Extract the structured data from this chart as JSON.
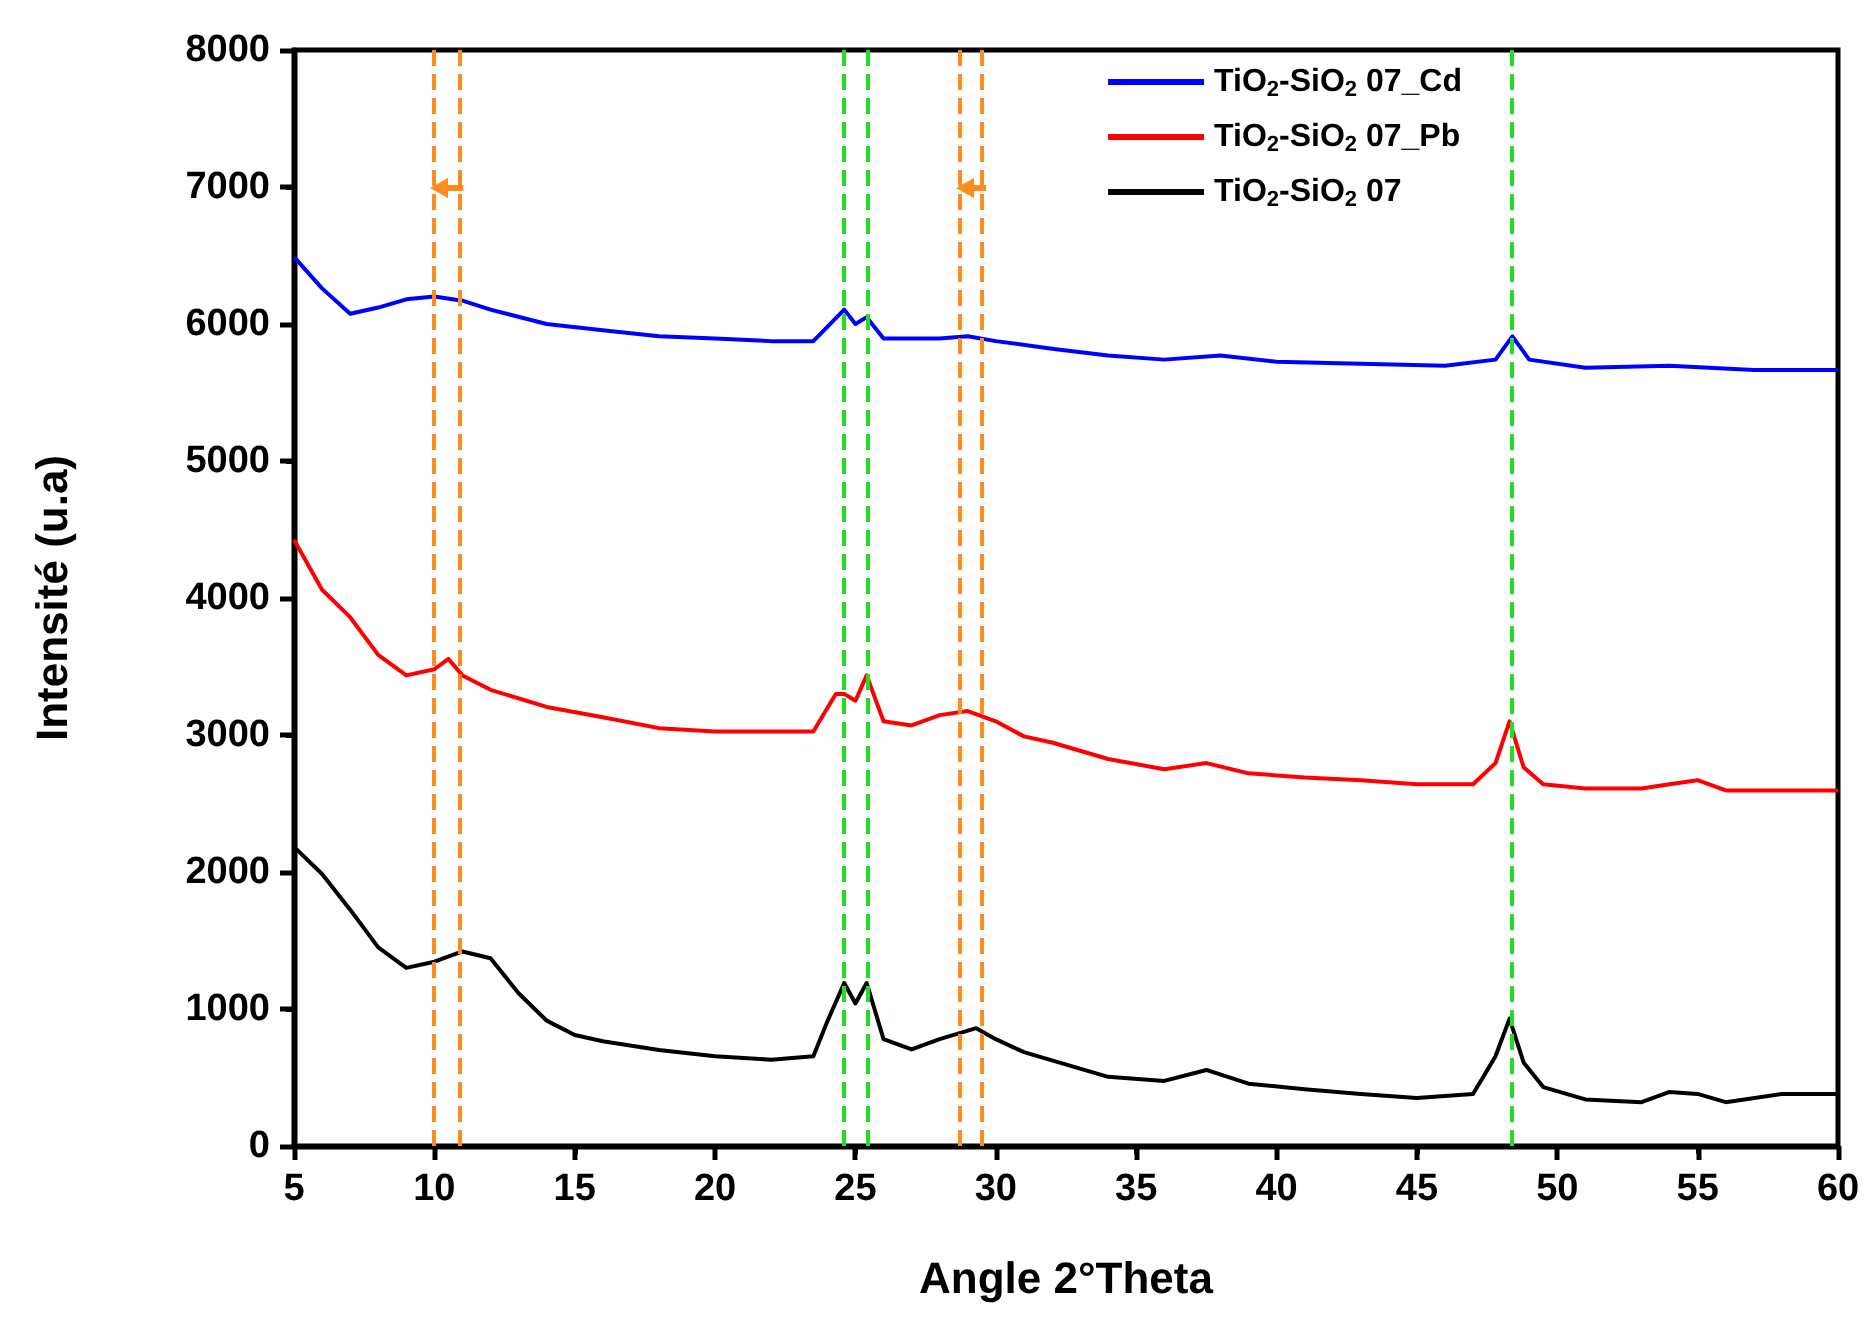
{
  "chart_data": {
    "type": "line",
    "xlabel": "Angle 2°Theta",
    "ylabel": "Intensité (u.a)",
    "xlim": [
      5,
      60
    ],
    "xticks": [
      5,
      10,
      15,
      20,
      25,
      30,
      35,
      40,
      45,
      50,
      55,
      60
    ],
    "ylim": [
      0,
      8000
    ],
    "yticks": [
      0,
      1000,
      2000,
      3000,
      4000,
      5000,
      6000,
      7000,
      8000
    ],
    "grid": false,
    "legend": "top right",
    "marker": "none",
    "line_style": "solid",
    "series": [
      {
        "name": "TiO$_{2}$-SiO$_{2}$ 07_Cd",
        "color": "#0000ff",
        "x": [
          5,
          6,
          7,
          8,
          9,
          10,
          11,
          12,
          14,
          16,
          18,
          20,
          22,
          23.5,
          24.6,
          25,
          25.4,
          26,
          28,
          29,
          30,
          32,
          34,
          36,
          38,
          40,
          43,
          46,
          47.8,
          48.4,
          49,
          51,
          54,
          57,
          60
        ],
        "values": [
          6490,
          6260,
          6075,
          6120,
          6180,
          6200,
          6170,
          6105,
          6000,
          5955,
          5910,
          5895,
          5875,
          5875,
          6105,
          6000,
          6050,
          5895,
          5895,
          5910,
          5875,
          5820,
          5770,
          5740,
          5770,
          5725,
          5710,
          5695,
          5740,
          5910,
          5740,
          5680,
          5695,
          5665,
          5665
        ]
      },
      {
        "name": "TiO$_{2}$-SiO$_{2}$ 07_Pb",
        "color": "#ff0000",
        "x": [
          5,
          6,
          7,
          8,
          9,
          10,
          10.5,
          11,
          12,
          14,
          16,
          18,
          20,
          22,
          23.5,
          24.3,
          24.6,
          25,
          25.4,
          26,
          27,
          28,
          29,
          30,
          31,
          32,
          34,
          36,
          37.5,
          39,
          41,
          43,
          45,
          47,
          47.8,
          48.3,
          48.8,
          49.5,
          51,
          53,
          54,
          55,
          56,
          58,
          60
        ],
        "values": [
          4425,
          4060,
          3860,
          3585,
          3435,
          3480,
          3555,
          3435,
          3330,
          3205,
          3130,
          3050,
          3025,
          3025,
          3025,
          3300,
          3300,
          3250,
          3435,
          3100,
          3070,
          3145,
          3175,
          3100,
          2990,
          2945,
          2825,
          2750,
          2795,
          2720,
          2690,
          2670,
          2640,
          2640,
          2795,
          3100,
          2765,
          2640,
          2610,
          2610,
          2640,
          2670,
          2595,
          2595,
          2595
        ]
      },
      {
        "name": "TiO$_{2}$-SiO$_{2}$ 07",
        "color": "#000000",
        "x": [
          5,
          6,
          7,
          8,
          9,
          10,
          11,
          12,
          13,
          14,
          15,
          16,
          18,
          20,
          22,
          23.5,
          24,
          24.6,
          25,
          25.4,
          26,
          27,
          28,
          29.3,
          30,
          31,
          32,
          34,
          36,
          37.5,
          39,
          41,
          43,
          45,
          47,
          47.8,
          48.3,
          48.8,
          49.5,
          51,
          53,
          54,
          55,
          56,
          58,
          60
        ],
        "values": [
          2183,
          1985,
          1725,
          1450,
          1300,
          1345,
          1420,
          1370,
          1115,
          915,
          810,
          765,
          700,
          655,
          630,
          655,
          910,
          1190,
          1040,
          1190,
          780,
          705,
          780,
          860,
          780,
          685,
          625,
          505,
          475,
          555,
          455,
          415,
          380,
          350,
          380,
          655,
          930,
          610,
          430,
          340,
          320,
          395,
          380,
          320,
          380,
          380
        ]
      }
    ],
    "ref_lines": [
      {
        "axis": "x",
        "value": 10,
        "color": "#ff8c1a",
        "line_style": "dashed"
      },
      {
        "axis": "x",
        "value": 10.9,
        "color": "#ff8c1a",
        "line_style": "dashed"
      },
      {
        "axis": "x",
        "value": 24.6,
        "color": "#22dd22",
        "line_style": "dashed"
      },
      {
        "axis": "x",
        "value": 25.4,
        "color": "#22dd22",
        "line_style": "dashed"
      },
      {
        "axis": "x",
        "value": 28.7,
        "color": "#ff8c1a",
        "line_style": "dashed"
      },
      {
        "axis": "x",
        "value": 29.5,
        "color": "#ff8c1a",
        "line_style": "dashed"
      },
      {
        "axis": "x",
        "value": 48.4,
        "color": "#22dd22",
        "line_style": "dashed"
      }
    ]
  }
}
